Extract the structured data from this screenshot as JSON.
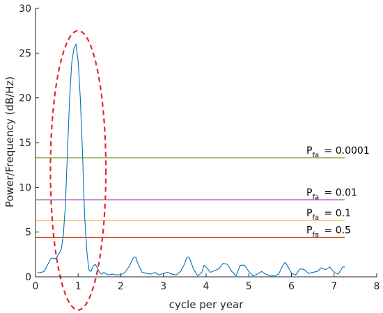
{
  "chart_data": {
    "type": "line",
    "xlabel": "cycle per year",
    "ylabel": "Power/Frequency (dB/Hz)",
    "xlim": [
      0,
      8
    ],
    "ylim": [
      0,
      30
    ],
    "x_ticks": [
      "0",
      "1",
      "2",
      "3",
      "4",
      "5",
      "6",
      "7",
      "8"
    ],
    "y_ticks": [
      "0",
      "5",
      "10",
      "15",
      "20",
      "25",
      "30"
    ],
    "grid": false,
    "series": [
      {
        "color": "#0072BD",
        "x": [
          0.05,
          0.1,
          0.2,
          0.3,
          0.35,
          0.4,
          0.45,
          0.5,
          0.55,
          0.6,
          0.65,
          0.7,
          0.75,
          0.8,
          0.85,
          0.9,
          0.95,
          1.0,
          1.05,
          1.1,
          1.15,
          1.2,
          1.25,
          1.3,
          1.35,
          1.4,
          1.45,
          1.5,
          1.55,
          1.6,
          1.7,
          1.8,
          1.9,
          2.0,
          2.1,
          2.2,
          2.3,
          2.35,
          2.4,
          2.5,
          2.6,
          2.7,
          2.8,
          2.9,
          3.0,
          3.1,
          3.2,
          3.3,
          3.4,
          3.5,
          3.55,
          3.6,
          3.65,
          3.7,
          3.8,
          3.9,
          3.95,
          4.0,
          4.05,
          4.1,
          4.2,
          4.3,
          4.4,
          4.5,
          4.6,
          4.7,
          4.8,
          4.9,
          5.0,
          5.1,
          5.2,
          5.3,
          5.4,
          5.5,
          5.6,
          5.7,
          5.8,
          5.85,
          5.9,
          6.0,
          6.1,
          6.2,
          6.3,
          6.4,
          6.5,
          6.6,
          6.7,
          6.8,
          6.9,
          7.0,
          7.1,
          7.2,
          7.25
        ],
        "y": [
          0.5,
          0.45,
          0.6,
          1.5,
          2.0,
          2.1,
          2.0,
          2.2,
          2.6,
          3.0,
          4.5,
          8.0,
          14.0,
          20.0,
          24.0,
          25.5,
          26.0,
          24.0,
          20.0,
          14.0,
          7.0,
          3.0,
          0.8,
          0.6,
          1.2,
          1.4,
          1.0,
          0.5,
          0.3,
          0.5,
          0.2,
          0.3,
          0.2,
          0.25,
          0.5,
          1.2,
          2.2,
          2.2,
          1.5,
          0.5,
          0.4,
          0.3,
          0.5,
          0.2,
          0.4,
          0.5,
          0.3,
          0.2,
          0.6,
          1.5,
          2.2,
          2.2,
          1.6,
          0.9,
          0.1,
          0.5,
          1.3,
          1.1,
          0.8,
          0.5,
          0.7,
          0.9,
          1.5,
          1.4,
          0.6,
          0.1,
          1.3,
          1.3,
          0.6,
          0.1,
          0.3,
          0.6,
          0.3,
          0.1,
          0.1,
          0.3,
          1.3,
          1.6,
          1.3,
          0.4,
          0.2,
          0.9,
          0.8,
          0.4,
          0.5,
          0.6,
          1.0,
          0.8,
          1.1,
          0.5,
          0.3,
          1.1,
          1.1
        ]
      }
    ],
    "thresholds": [
      {
        "label_p": "P",
        "label_sub": "fa",
        "label_value": "= 0.0001",
        "y": 13.3,
        "color": "#77AC30",
        "x_end": 7.25
      },
      {
        "label_p": "P",
        "label_sub": "fa",
        "label_value": "=   0.01",
        "y": 8.6,
        "color": "#7E2F8E",
        "x_end": 7.25
      },
      {
        "label_p": "P",
        "label_sub": "fa",
        "label_value": "=    0.1",
        "y": 6.3,
        "color": "#EDB120",
        "x_end": 7.25
      },
      {
        "label_p": "P",
        "label_sub": "fa",
        "label_value": "=    0.5",
        "y": 4.4,
        "color": "#D95319",
        "x_end": 7.25
      }
    ],
    "annotations": [
      {
        "type": "dashed-ellipse",
        "color": "#E32636",
        "x_center": 1.0,
        "y_center": 11.9,
        "x_radius": 0.65,
        "y_radius": 15.6
      }
    ]
  }
}
